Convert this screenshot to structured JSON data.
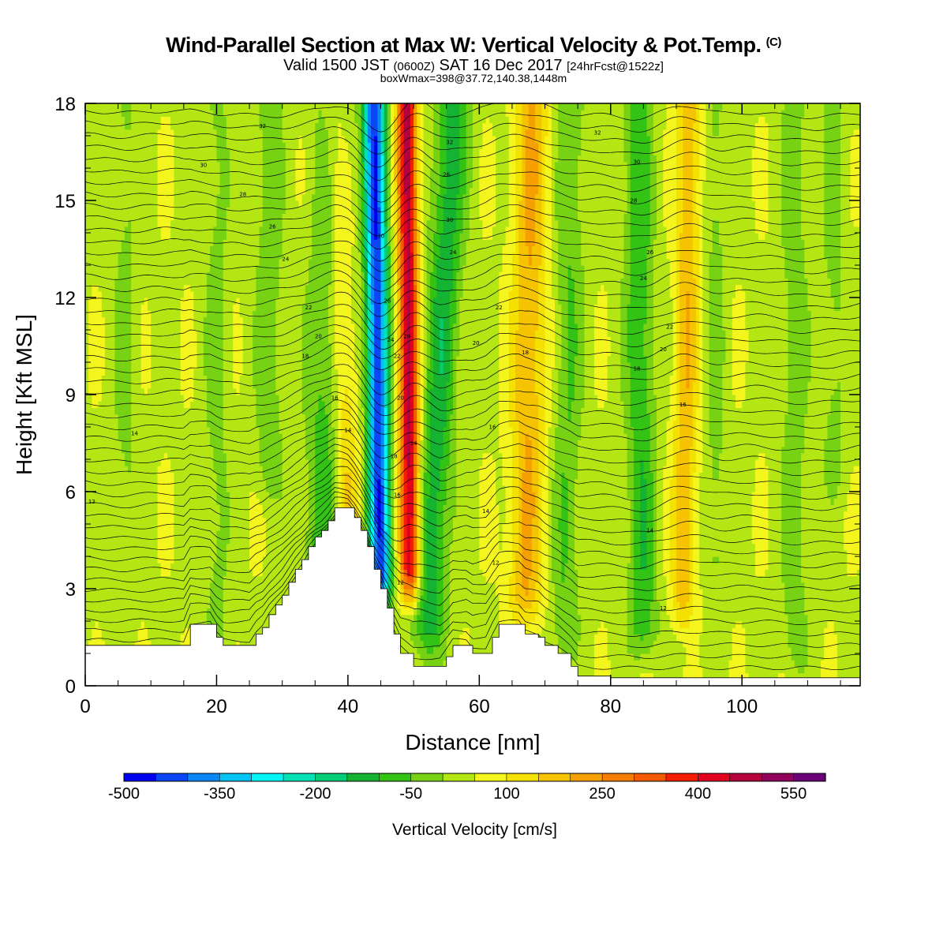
{
  "header": {
    "title": "Wind-Parallel Section at Max W: Vertical Velocity & Pot.Temp.",
    "copyright": "(C)",
    "valid_prefix": "Valid 1500 JST",
    "valid_utc": "(0600Z)",
    "valid_date": "SAT 16 Dec 2017",
    "forecast": "[24hrFcst@1522z]",
    "boxmax": "boxWmax=398@37.72,140.38,1448m"
  },
  "chart_data": {
    "type": "heatmap",
    "xlabel": "Distance [nm]",
    "ylabel": "Height [Kft MSL]",
    "xlim": [
      0,
      118
    ],
    "ylim": [
      0,
      18
    ],
    "xticks": [
      "0",
      "20",
      "40",
      "60",
      "80",
      "100"
    ],
    "yticks": [
      "0",
      "3",
      "6",
      "9",
      "12",
      "15",
      "18"
    ],
    "colorbar": {
      "title": "Vertical Velocity [cm/s]",
      "min": -500,
      "max": 650,
      "step": 50,
      "tick_labels": [
        "-500",
        "-350",
        "-200",
        "-50",
        "100",
        "250",
        "400",
        "550"
      ],
      "colors": [
        "#0000f0",
        "#0a46f5",
        "#0a87f5",
        "#00c3f5",
        "#00f5f5",
        "#00e1b4",
        "#00cd78",
        "#14b432",
        "#32c314",
        "#78d214",
        "#b4e614",
        "#f5f51e",
        "#f5e100",
        "#f5c300",
        "#f5a000",
        "#f57d00",
        "#f55a00",
        "#f51e00",
        "#e1001e",
        "#b4003c",
        "#91005a",
        "#690078"
      ]
    },
    "terrain_kft": [
      [
        0,
        1.25
      ],
      [
        15,
        1.25
      ],
      [
        16,
        1.9
      ],
      [
        19,
        1.9
      ],
      [
        20,
        1.5
      ],
      [
        21,
        1.25
      ],
      [
        25,
        1.25
      ],
      [
        26,
        1.6
      ],
      [
        27,
        1.8
      ],
      [
        28,
        2.2
      ],
      [
        29,
        2.5
      ],
      [
        30,
        2.8
      ],
      [
        31,
        3.2
      ],
      [
        32,
        3.6
      ],
      [
        33,
        3.9
      ],
      [
        34,
        4.3
      ],
      [
        35,
        4.6
      ],
      [
        36,
        4.8
      ],
      [
        37,
        5.1
      ],
      [
        38,
        5.5
      ],
      [
        40,
        5.5
      ],
      [
        41,
        5.2
      ],
      [
        42,
        4.8
      ],
      [
        43,
        4.3
      ],
      [
        44,
        3.6
      ],
      [
        45,
        3.0
      ],
      [
        46,
        2.4
      ],
      [
        47,
        1.6
      ],
      [
        48,
        1.0
      ],
      [
        50,
        0.6
      ],
      [
        54,
        0.6
      ],
      [
        55,
        0.9
      ],
      [
        56,
        1.25
      ],
      [
        58,
        1.25
      ],
      [
        59,
        1.0
      ],
      [
        61,
        1.0
      ],
      [
        62,
        1.5
      ],
      [
        63,
        1.9
      ],
      [
        66,
        1.9
      ],
      [
        67,
        1.6
      ],
      [
        69,
        1.5
      ],
      [
        70,
        1.25
      ],
      [
        72,
        1.0
      ],
      [
        74,
        0.6
      ],
      [
        75,
        0.3
      ],
      [
        80,
        0.25
      ],
      [
        118,
        0.25
      ]
    ],
    "velocity_features": [
      {
        "x_bottom": 45,
        "x_top": 44,
        "y_base": 2.5,
        "width": 1.6,
        "value": -480
      },
      {
        "x_bottom": 49.5,
        "x_top": 49,
        "y_base": 2.8,
        "width": 1.5,
        "value": 430
      },
      {
        "x_bottom": 52,
        "x_top": 56,
        "y_base": 1.0,
        "width": 2.5,
        "value": -170
      },
      {
        "x_bottom": 40,
        "x_top": 38,
        "y_base": 4.0,
        "width": 2.0,
        "value": 130
      },
      {
        "x_bottom": 36,
        "x_top": 38,
        "y_base": 3.0,
        "width": 3.0,
        "value": -120
      },
      {
        "x_bottom": 28,
        "x_top": 28,
        "y_base": 6.0,
        "width": 2.0,
        "value": -80
      },
      {
        "x_bottom": 67,
        "x_top": 68,
        "y_base": 2.0,
        "width": 2.6,
        "value": 160
      },
      {
        "x_bottom": 73,
        "x_top": 74,
        "y_base": 1.0,
        "width": 2.2,
        "value": -90
      },
      {
        "x_bottom": 85,
        "x_top": 84,
        "y_base": 1.0,
        "width": 2.2,
        "value": -130
      },
      {
        "x_bottom": 91,
        "x_top": 92,
        "y_base": 2.0,
        "width": 1.8,
        "value": 150
      },
      {
        "x_bottom": 96,
        "x_top": 96,
        "y_base": 3.0,
        "width": 1.5,
        "value": -60
      },
      {
        "x_bottom": 108,
        "x_top": 108,
        "y_base": 0.5,
        "width": 2.0,
        "value": -70
      },
      {
        "x_bottom": 20,
        "x_top": 20,
        "y_base": 0.5,
        "width": 2.0,
        "value": -55
      },
      {
        "x_bottom": 6,
        "x_top": 6,
        "y_base": 3.0,
        "width": 2.0,
        "value": -50
      },
      {
        "x_bottom": 114,
        "x_top": 114,
        "y_base": 6.0,
        "width": 2.0,
        "value": -55
      }
    ],
    "background_value": 40,
    "contour_labels": [
      {
        "x": 1,
        "y": 5.7,
        "text": "12"
      },
      {
        "x": 7.5,
        "y": 7.8,
        "text": "14"
      },
      {
        "x": 38,
        "y": 8.9,
        "text": "16"
      },
      {
        "x": 40,
        "y": 7.9,
        "text": "14"
      },
      {
        "x": 33.5,
        "y": 10.2,
        "text": "18"
      },
      {
        "x": 35.5,
        "y": 10.8,
        "text": "20"
      },
      {
        "x": 34,
        "y": 11.7,
        "text": "22"
      },
      {
        "x": 30.5,
        "y": 13.2,
        "text": "24"
      },
      {
        "x": 28.5,
        "y": 14.2,
        "text": "26"
      },
      {
        "x": 24,
        "y": 15.2,
        "text": "28"
      },
      {
        "x": 18,
        "y": 16.1,
        "text": "30"
      },
      {
        "x": 27,
        "y": 17.3,
        "text": "32"
      },
      {
        "x": 45,
        "y": 13.9,
        "text": "30"
      },
      {
        "x": 46,
        "y": 11.9,
        "text": "26"
      },
      {
        "x": 46.5,
        "y": 10.7,
        "text": "24"
      },
      {
        "x": 47.5,
        "y": 10.2,
        "text": "22"
      },
      {
        "x": 49,
        "y": 10.8,
        "text": "28"
      },
      {
        "x": 48,
        "y": 8.9,
        "text": "20"
      },
      {
        "x": 47,
        "y": 7.1,
        "text": "18"
      },
      {
        "x": 50,
        "y": 7.5,
        "text": "14"
      },
      {
        "x": 47.5,
        "y": 5.9,
        "text": "16"
      },
      {
        "x": 48,
        "y": 3.2,
        "text": "12"
      },
      {
        "x": 55.5,
        "y": 16.8,
        "text": "32"
      },
      {
        "x": 55,
        "y": 15.8,
        "text": "26"
      },
      {
        "x": 55.5,
        "y": 14.4,
        "text": "30"
      },
      {
        "x": 56,
        "y": 13.4,
        "text": "24"
      },
      {
        "x": 59.5,
        "y": 10.6,
        "text": "20"
      },
      {
        "x": 63,
        "y": 11.7,
        "text": "22"
      },
      {
        "x": 67,
        "y": 10.3,
        "text": "18"
      },
      {
        "x": 62,
        "y": 8.0,
        "text": "16"
      },
      {
        "x": 61,
        "y": 5.4,
        "text": "14"
      },
      {
        "x": 62.5,
        "y": 3.8,
        "text": "12"
      },
      {
        "x": 78,
        "y": 17.1,
        "text": "32"
      },
      {
        "x": 84,
        "y": 16.2,
        "text": "30"
      },
      {
        "x": 83.5,
        "y": 15.0,
        "text": "28"
      },
      {
        "x": 86,
        "y": 13.4,
        "text": "26"
      },
      {
        "x": 85,
        "y": 12.6,
        "text": "24"
      },
      {
        "x": 89,
        "y": 11.1,
        "text": "22"
      },
      {
        "x": 88,
        "y": 10.4,
        "text": "20"
      },
      {
        "x": 84,
        "y": 9.8,
        "text": "18"
      },
      {
        "x": 91,
        "y": 8.7,
        "text": "16"
      },
      {
        "x": 86,
        "y": 4.8,
        "text": "14"
      },
      {
        "x": 88,
        "y": 2.4,
        "text": "12"
      }
    ]
  }
}
